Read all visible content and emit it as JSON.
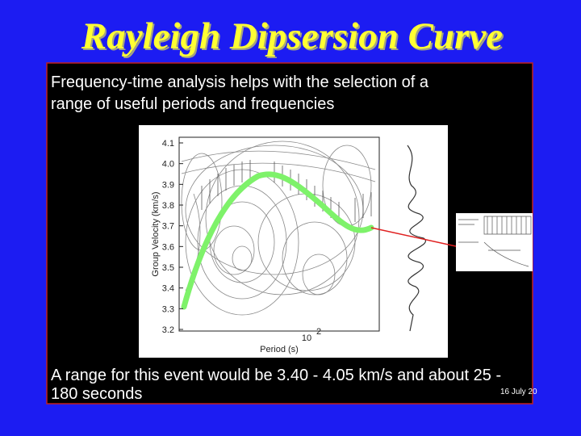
{
  "slide": {
    "title": "Rayleigh Dipsersion Curve",
    "intro_lines": [
      "Frequency-time analysis helps with the selection of a",
      "range of useful periods and frequencies"
    ],
    "footer_lines": [
      "A range for this event would be 3.40 - 4.05 km/s and about 25 -",
      "180 seconds"
    ],
    "date": "16 July 20"
  },
  "figure": {
    "y_label": "Group Velocity (km/s)",
    "x_label": "Period (s)",
    "y_tick_labels": [
      "4.1",
      "4.0",
      "3.9",
      "3.8",
      "3.7",
      "3.6",
      "3.5",
      "3.4",
      "3.3",
      "3.2"
    ],
    "x_tick_base": "10",
    "x_tick_exponent": "2"
  }
}
